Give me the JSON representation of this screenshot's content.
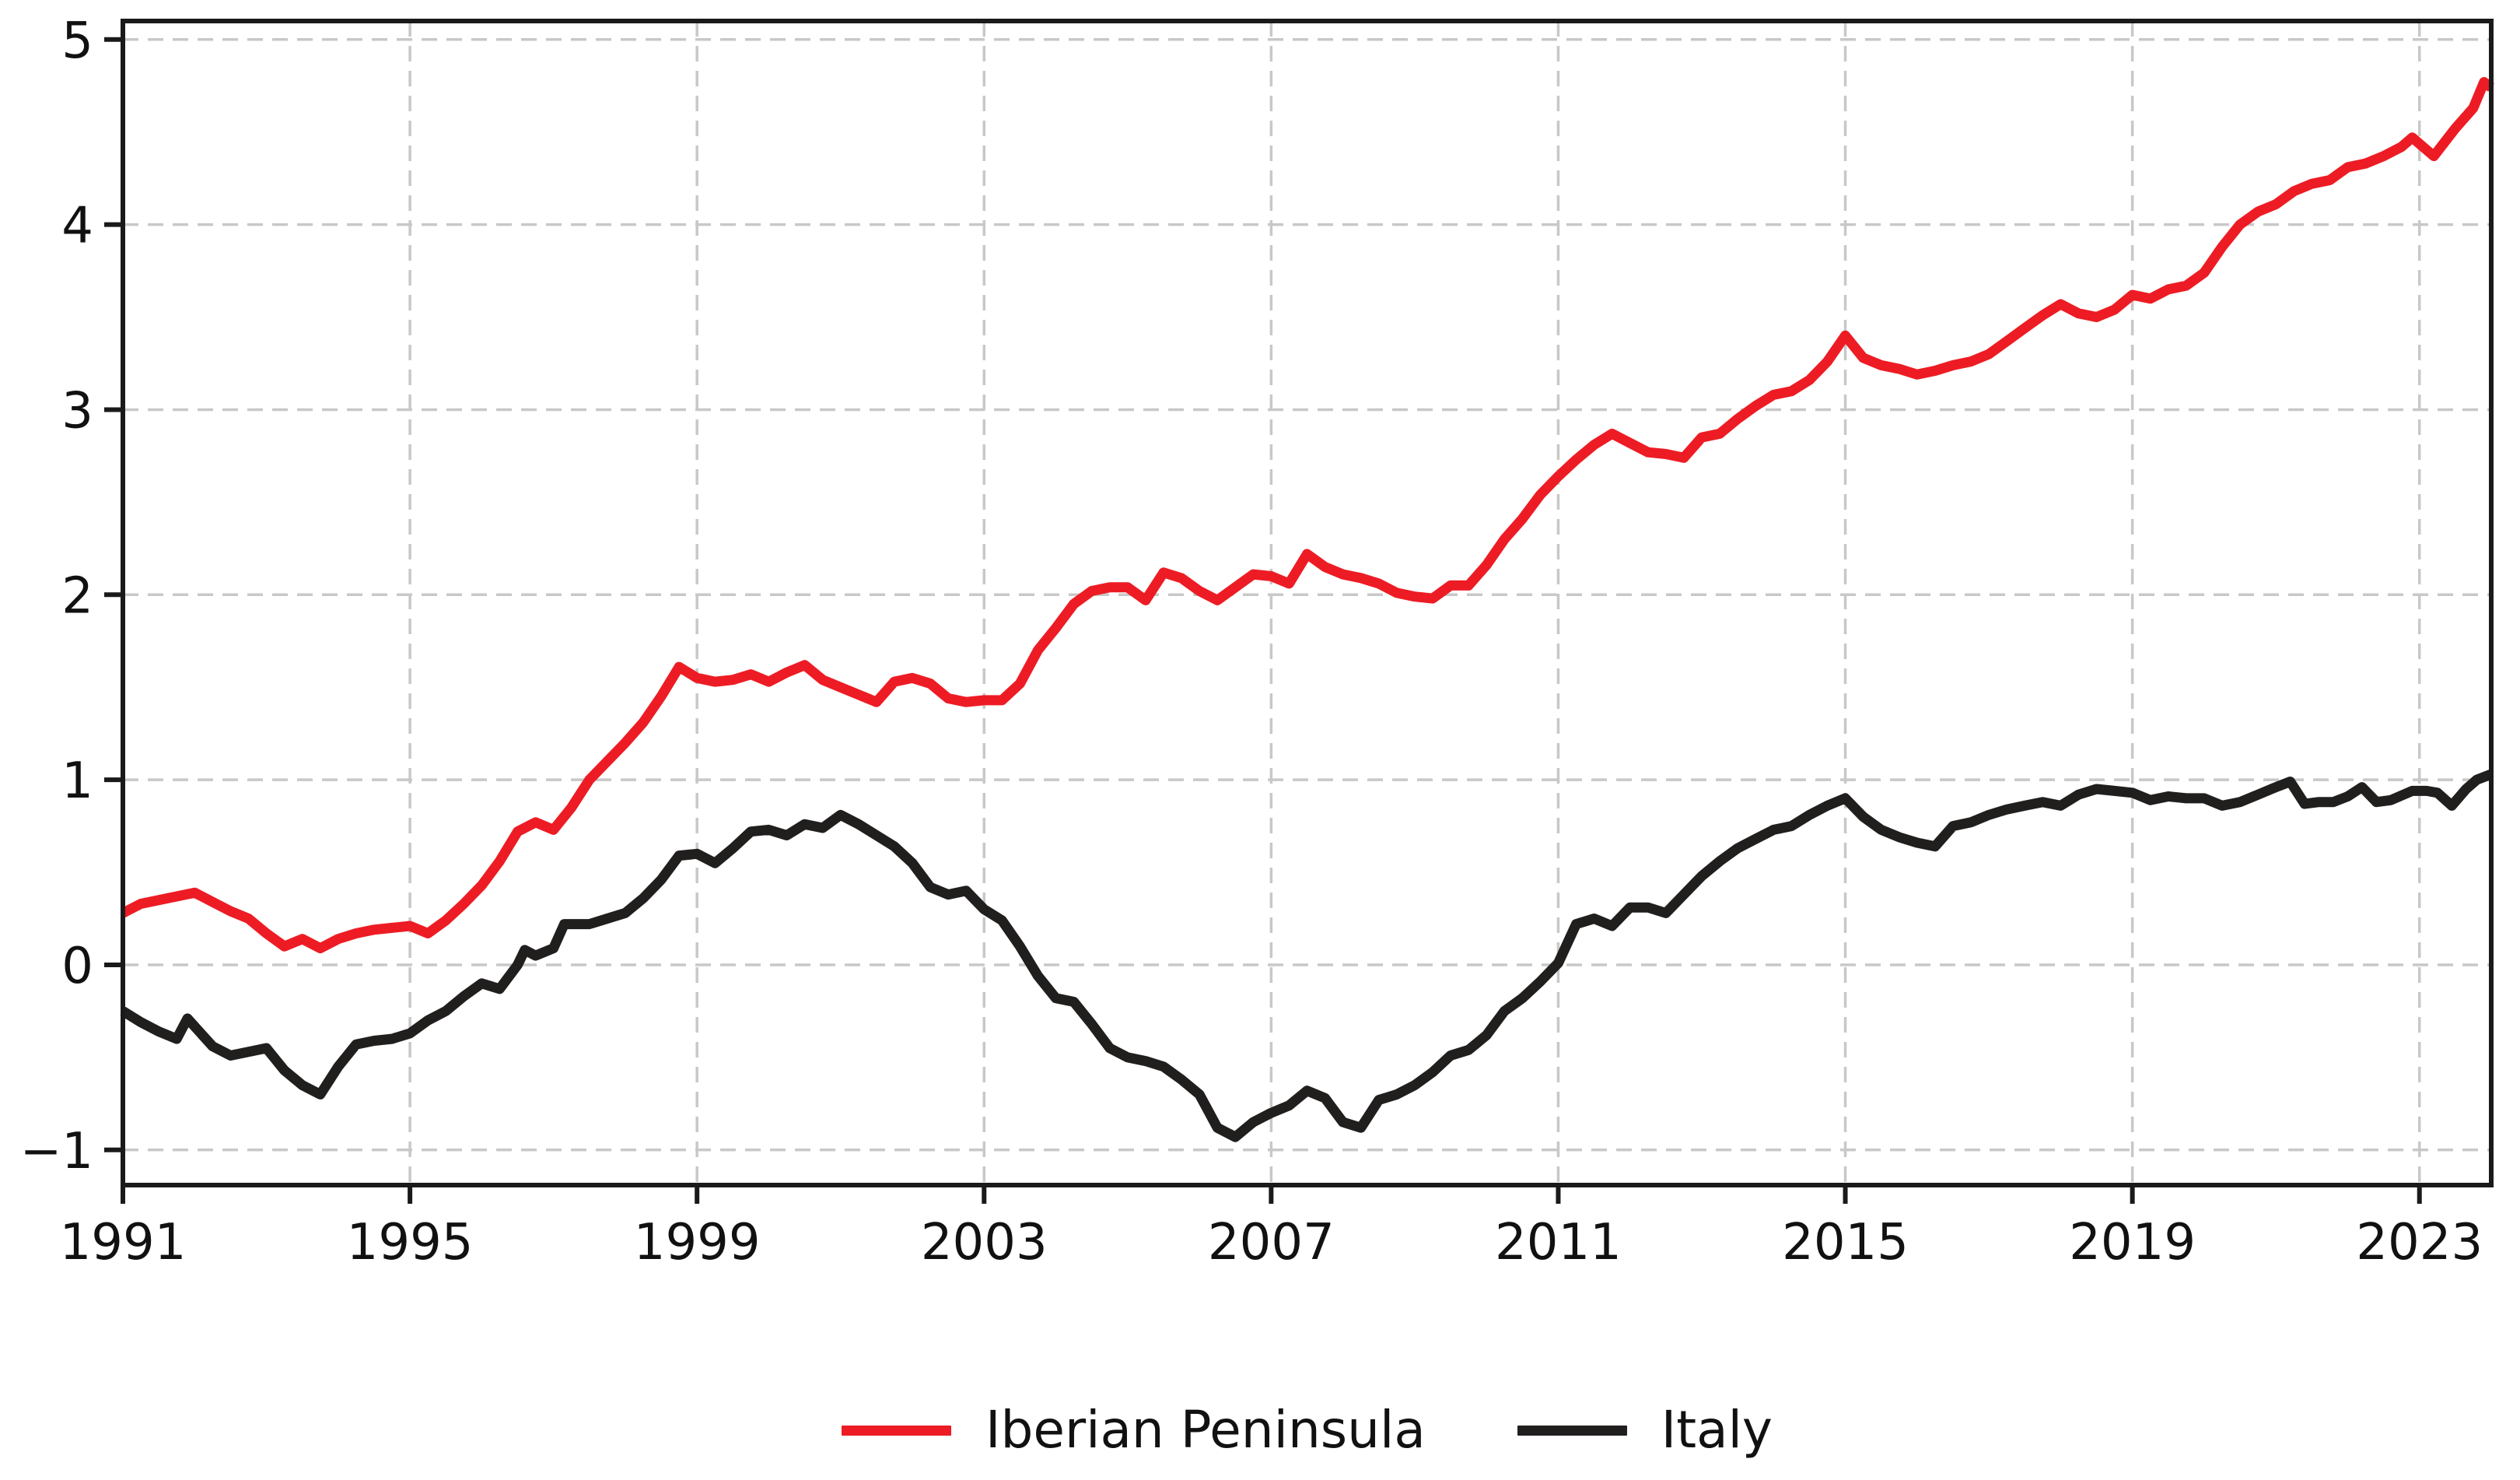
{
  "figure": {
    "background": "#ffffff",
    "axis_color": "#1a1a1a",
    "grid_color": "#c8c8c8",
    "tick_label_color": "#111111"
  },
  "chart_data": {
    "type": "line",
    "title": "",
    "xlabel": "",
    "ylabel": "",
    "xlim": [
      1991,
      2024
    ],
    "ylim": [
      -1.19,
      5.1
    ],
    "grid": true,
    "grid_style": "dashed",
    "legend_position": "bottom-center",
    "x_ticks": [
      1991,
      1995,
      1999,
      2003,
      2007,
      2011,
      2015,
      2019,
      2023
    ],
    "x_tick_labels": [
      "1991",
      "1995",
      "1999",
      "2003",
      "2007",
      "2011",
      "2015",
      "2019",
      "2023"
    ],
    "y_ticks": [
      -1,
      0,
      1,
      2,
      3,
      4,
      5
    ],
    "y_tick_labels": [
      "−1",
      "0",
      "1",
      "2",
      "3",
      "4",
      "5"
    ],
    "series": [
      {
        "name": "Iberian Peninsula",
        "color": "#ed1c24",
        "line_width": 13,
        "points": [
          [
            1991.0,
            0.28
          ],
          [
            1991.25,
            0.33
          ],
          [
            1991.5,
            0.35
          ],
          [
            1991.75,
            0.37
          ],
          [
            1992.0,
            0.39
          ],
          [
            1992.25,
            0.34
          ],
          [
            1992.5,
            0.29
          ],
          [
            1992.75,
            0.25
          ],
          [
            1993.0,
            0.17
          ],
          [
            1993.25,
            0.1
          ],
          [
            1993.5,
            0.14
          ],
          [
            1993.75,
            0.09
          ],
          [
            1994.0,
            0.14
          ],
          [
            1994.25,
            0.17
          ],
          [
            1994.5,
            0.19
          ],
          [
            1994.75,
            0.2
          ],
          [
            1995.0,
            0.21
          ],
          [
            1995.25,
            0.17
          ],
          [
            1995.5,
            0.24
          ],
          [
            1995.75,
            0.33
          ],
          [
            1996.0,
            0.43
          ],
          [
            1996.25,
            0.56
          ],
          [
            1996.5,
            0.72
          ],
          [
            1996.75,
            0.77
          ],
          [
            1997.0,
            0.73
          ],
          [
            1997.25,
            0.85
          ],
          [
            1997.5,
            1.0
          ],
          [
            1997.75,
            1.1
          ],
          [
            1998.0,
            1.2
          ],
          [
            1998.25,
            1.31
          ],
          [
            1998.5,
            1.45
          ],
          [
            1998.75,
            1.61
          ],
          [
            1999.0,
            1.55
          ],
          [
            1999.25,
            1.53
          ],
          [
            1999.5,
            1.54
          ],
          [
            1999.75,
            1.57
          ],
          [
            2000.0,
            1.53
          ],
          [
            2000.25,
            1.58
          ],
          [
            2000.5,
            1.62
          ],
          [
            2000.75,
            1.54
          ],
          [
            2001.0,
            1.5
          ],
          [
            2001.25,
            1.46
          ],
          [
            2001.5,
            1.42
          ],
          [
            2001.75,
            1.53
          ],
          [
            2002.0,
            1.55
          ],
          [
            2002.25,
            1.52
          ],
          [
            2002.5,
            1.44
          ],
          [
            2002.75,
            1.42
          ],
          [
            2003.0,
            1.43
          ],
          [
            2003.25,
            1.43
          ],
          [
            2003.5,
            1.52
          ],
          [
            2003.75,
            1.7
          ],
          [
            2004.0,
            1.82
          ],
          [
            2004.25,
            1.95
          ],
          [
            2004.5,
            2.02
          ],
          [
            2004.75,
            2.04
          ],
          [
            2005.0,
            2.04
          ],
          [
            2005.25,
            1.97
          ],
          [
            2005.5,
            2.12
          ],
          [
            2005.75,
            2.09
          ],
          [
            2006.0,
            2.02
          ],
          [
            2006.25,
            1.97
          ],
          [
            2006.5,
            2.04
          ],
          [
            2006.75,
            2.11
          ],
          [
            2007.0,
            2.1
          ],
          [
            2007.25,
            2.06
          ],
          [
            2007.5,
            2.22
          ],
          [
            2007.75,
            2.15
          ],
          [
            2008.0,
            2.11
          ],
          [
            2008.25,
            2.09
          ],
          [
            2008.5,
            2.06
          ],
          [
            2008.75,
            2.01
          ],
          [
            2009.0,
            1.99
          ],
          [
            2009.25,
            1.98
          ],
          [
            2009.5,
            2.05
          ],
          [
            2009.75,
            2.05
          ],
          [
            2010.0,
            2.16
          ],
          [
            2010.25,
            2.3
          ],
          [
            2010.5,
            2.41
          ],
          [
            2010.75,
            2.54
          ],
          [
            2011.0,
            2.64
          ],
          [
            2011.25,
            2.73
          ],
          [
            2011.5,
            2.81
          ],
          [
            2011.75,
            2.87
          ],
          [
            2012.0,
            2.82
          ],
          [
            2012.25,
            2.77
          ],
          [
            2012.5,
            2.76
          ],
          [
            2012.75,
            2.74
          ],
          [
            2013.0,
            2.85
          ],
          [
            2013.25,
            2.87
          ],
          [
            2013.5,
            2.95
          ],
          [
            2013.75,
            3.02
          ],
          [
            2014.0,
            3.08
          ],
          [
            2014.25,
            3.1
          ],
          [
            2014.5,
            3.16
          ],
          [
            2014.75,
            3.26
          ],
          [
            2015.0,
            3.4
          ],
          [
            2015.25,
            3.28
          ],
          [
            2015.5,
            3.24
          ],
          [
            2015.75,
            3.22
          ],
          [
            2016.0,
            3.19
          ],
          [
            2016.25,
            3.21
          ],
          [
            2016.5,
            3.24
          ],
          [
            2016.75,
            3.26
          ],
          [
            2017.0,
            3.3
          ],
          [
            2017.25,
            3.37
          ],
          [
            2017.5,
            3.44
          ],
          [
            2017.75,
            3.51
          ],
          [
            2018.0,
            3.57
          ],
          [
            2018.25,
            3.52
          ],
          [
            2018.5,
            3.5
          ],
          [
            2018.75,
            3.54
          ],
          [
            2019.0,
            3.62
          ],
          [
            2019.25,
            3.6
          ],
          [
            2019.5,
            3.65
          ],
          [
            2019.75,
            3.67
          ],
          [
            2020.0,
            3.74
          ],
          [
            2020.25,
            3.88
          ],
          [
            2020.5,
            4.0
          ],
          [
            2020.75,
            4.07
          ],
          [
            2021.0,
            4.11
          ],
          [
            2021.25,
            4.18
          ],
          [
            2021.5,
            4.22
          ],
          [
            2021.75,
            4.24
          ],
          [
            2022.0,
            4.31
          ],
          [
            2022.25,
            4.33
          ],
          [
            2022.5,
            4.37
          ],
          [
            2022.75,
            4.42
          ],
          [
            2022.9,
            4.47
          ],
          [
            2023.2,
            4.37
          ],
          [
            2023.5,
            4.52
          ],
          [
            2023.75,
            4.63
          ],
          [
            2023.9,
            4.77
          ],
          [
            2024.0,
            4.74
          ]
        ]
      },
      {
        "name": "Italy",
        "color": "#211e1e",
        "line_width": 13,
        "points": [
          [
            1991.0,
            -0.25
          ],
          [
            1991.25,
            -0.31
          ],
          [
            1991.5,
            -0.36
          ],
          [
            1991.75,
            -0.4
          ],
          [
            1991.9,
            -0.29
          ],
          [
            1992.25,
            -0.44
          ],
          [
            1992.5,
            -0.49
          ],
          [
            1992.75,
            -0.47
          ],
          [
            1993.0,
            -0.45
          ],
          [
            1993.25,
            -0.57
          ],
          [
            1993.5,
            -0.65
          ],
          [
            1993.75,
            -0.7
          ],
          [
            1994.0,
            -0.55
          ],
          [
            1994.25,
            -0.43
          ],
          [
            1994.5,
            -0.41
          ],
          [
            1994.75,
            -0.4
          ],
          [
            1995.0,
            -0.37
          ],
          [
            1995.25,
            -0.3
          ],
          [
            1995.5,
            -0.25
          ],
          [
            1995.75,
            -0.17
          ],
          [
            1996.0,
            -0.1
          ],
          [
            1996.25,
            -0.13
          ],
          [
            1996.5,
            0.0
          ],
          [
            1996.6,
            0.08
          ],
          [
            1996.75,
            0.05
          ],
          [
            1997.0,
            0.09
          ],
          [
            1997.15,
            0.22
          ],
          [
            1997.5,
            0.22
          ],
          [
            1997.75,
            0.25
          ],
          [
            1998.0,
            0.28
          ],
          [
            1998.25,
            0.36
          ],
          [
            1998.5,
            0.46
          ],
          [
            1998.75,
            0.59
          ],
          [
            1999.0,
            0.6
          ],
          [
            1999.25,
            0.55
          ],
          [
            1999.5,
            0.63
          ],
          [
            1999.75,
            0.72
          ],
          [
            2000.0,
            0.73
          ],
          [
            2000.25,
            0.7
          ],
          [
            2000.5,
            0.76
          ],
          [
            2000.75,
            0.74
          ],
          [
            2001.0,
            0.81
          ],
          [
            2001.25,
            0.76
          ],
          [
            2001.5,
            0.7
          ],
          [
            2001.75,
            0.64
          ],
          [
            2002.0,
            0.55
          ],
          [
            2002.25,
            0.42
          ],
          [
            2002.5,
            0.38
          ],
          [
            2002.75,
            0.4
          ],
          [
            2003.0,
            0.3
          ],
          [
            2003.25,
            0.24
          ],
          [
            2003.5,
            0.1
          ],
          [
            2003.75,
            -0.06
          ],
          [
            2004.0,
            -0.18
          ],
          [
            2004.25,
            -0.2
          ],
          [
            2004.5,
            -0.32
          ],
          [
            2004.75,
            -0.45
          ],
          [
            2005.0,
            -0.5
          ],
          [
            2005.25,
            -0.52
          ],
          [
            2005.5,
            -0.55
          ],
          [
            2005.75,
            -0.62
          ],
          [
            2006.0,
            -0.7
          ],
          [
            2006.25,
            -0.88
          ],
          [
            2006.5,
            -0.93
          ],
          [
            2006.75,
            -0.85
          ],
          [
            2007.0,
            -0.8
          ],
          [
            2007.25,
            -0.76
          ],
          [
            2007.5,
            -0.68
          ],
          [
            2007.75,
            -0.72
          ],
          [
            2008.0,
            -0.85
          ],
          [
            2008.25,
            -0.88
          ],
          [
            2008.5,
            -0.73
          ],
          [
            2008.75,
            -0.7
          ],
          [
            2009.0,
            -0.65
          ],
          [
            2009.25,
            -0.58
          ],
          [
            2009.5,
            -0.49
          ],
          [
            2009.75,
            -0.46
          ],
          [
            2010.0,
            -0.38
          ],
          [
            2010.25,
            -0.25
          ],
          [
            2010.5,
            -0.18
          ],
          [
            2010.75,
            -0.09
          ],
          [
            2011.0,
            0.01
          ],
          [
            2011.25,
            0.22
          ],
          [
            2011.5,
            0.25
          ],
          [
            2011.75,
            0.21
          ],
          [
            2012.0,
            0.31
          ],
          [
            2012.25,
            0.31
          ],
          [
            2012.5,
            0.28
          ],
          [
            2012.75,
            0.38
          ],
          [
            2013.0,
            0.48
          ],
          [
            2013.25,
            0.56
          ],
          [
            2013.5,
            0.63
          ],
          [
            2013.75,
            0.68
          ],
          [
            2014.0,
            0.73
          ],
          [
            2014.25,
            0.75
          ],
          [
            2014.5,
            0.81
          ],
          [
            2014.75,
            0.86
          ],
          [
            2015.0,
            0.9
          ],
          [
            2015.25,
            0.8
          ],
          [
            2015.5,
            0.73
          ],
          [
            2015.75,
            0.69
          ],
          [
            2016.0,
            0.66
          ],
          [
            2016.25,
            0.64
          ],
          [
            2016.5,
            0.75
          ],
          [
            2016.75,
            0.77
          ],
          [
            2017.0,
            0.81
          ],
          [
            2017.25,
            0.84
          ],
          [
            2017.5,
            0.86
          ],
          [
            2017.75,
            0.88
          ],
          [
            2018.0,
            0.86
          ],
          [
            2018.25,
            0.92
          ],
          [
            2018.5,
            0.95
          ],
          [
            2018.75,
            0.94
          ],
          [
            2019.0,
            0.93
          ],
          [
            2019.25,
            0.89
          ],
          [
            2019.5,
            0.91
          ],
          [
            2019.75,
            0.9
          ],
          [
            2020.0,
            0.9
          ],
          [
            2020.25,
            0.86
          ],
          [
            2020.5,
            0.88
          ],
          [
            2020.75,
            0.92
          ],
          [
            2021.0,
            0.96
          ],
          [
            2021.2,
            0.99
          ],
          [
            2021.4,
            0.87
          ],
          [
            2021.6,
            0.88
          ],
          [
            2021.8,
            0.88
          ],
          [
            2022.0,
            0.91
          ],
          [
            2022.2,
            0.96
          ],
          [
            2022.4,
            0.88
          ],
          [
            2022.6,
            0.89
          ],
          [
            2022.9,
            0.94
          ],
          [
            2023.1,
            0.94
          ],
          [
            2023.25,
            0.93
          ],
          [
            2023.45,
            0.86
          ],
          [
            2023.65,
            0.95
          ],
          [
            2023.8,
            1.0
          ],
          [
            2024.0,
            1.03
          ]
        ]
      }
    ]
  },
  "legend": {
    "items": [
      {
        "label": "Iberian Peninsula"
      },
      {
        "label": "Italy"
      }
    ]
  }
}
